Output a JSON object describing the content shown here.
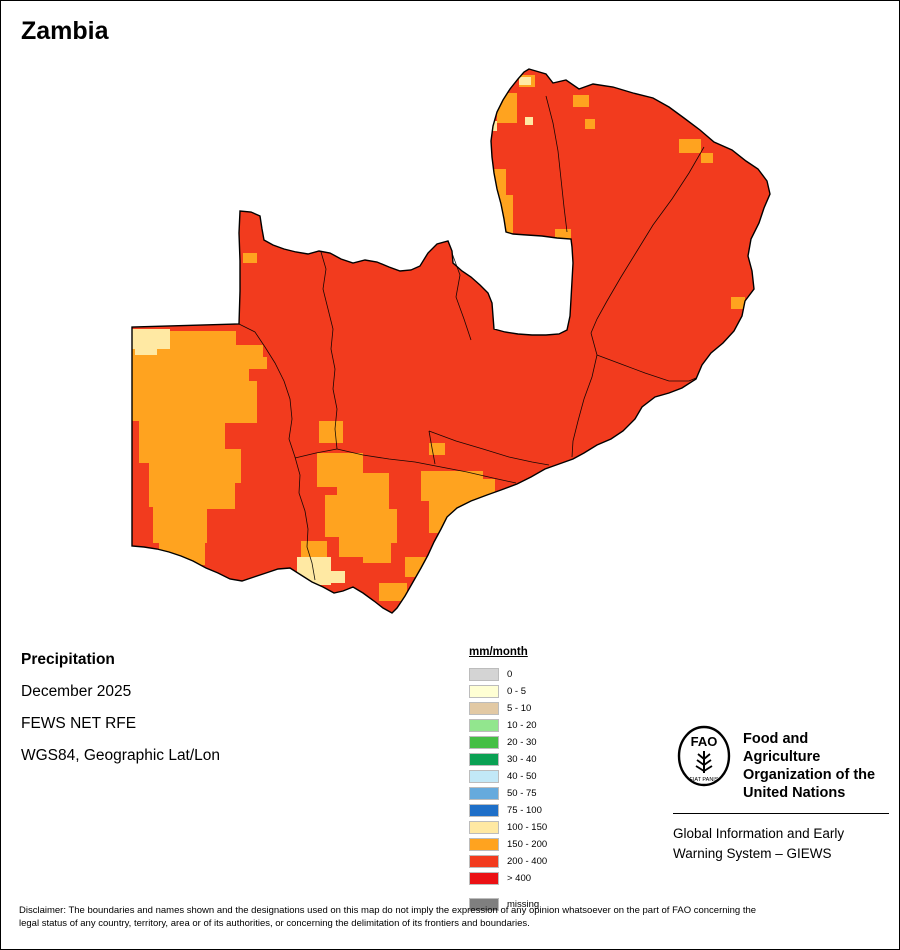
{
  "title": "Zambia",
  "meta": {
    "heading": "Precipitation",
    "period": "December 2025",
    "source": "FEWS NET RFE",
    "projection": "WGS84, Geographic Lat/Lon"
  },
  "legend": {
    "title": "mm/month",
    "entries": [
      {
        "label": "0",
        "color": "#d4d4d4"
      },
      {
        "label": "0 - 5",
        "color": "#ffffd4"
      },
      {
        "label": "5 - 10",
        "color": "#e2c9a4"
      },
      {
        "label": "10 - 20",
        "color": "#92e68e"
      },
      {
        "label": "20 - 30",
        "color": "#45bf45"
      },
      {
        "label": "30 - 40",
        "color": "#0aa153"
      },
      {
        "label": "40 - 50",
        "color": "#c2e8f7"
      },
      {
        "label": "50 - 75",
        "color": "#66aadd"
      },
      {
        "label": "75 - 100",
        "color": "#1e6fc8"
      },
      {
        "label": "100 - 150",
        "color": "#ffe9a3"
      },
      {
        "label": "150 - 200",
        "color": "#ffa31f"
      },
      {
        "label": "200 - 400",
        "color": "#f23b1e"
      },
      {
        "label": "> 400",
        "color": "#eb1014"
      },
      {
        "label": "missing",
        "color": "#7f7f7f"
      }
    ]
  },
  "map_colors": {
    "main": "#f23b1e",
    "patch_orange": "#ffa31f",
    "patch_yellow": "#ffe9a3",
    "boundary": "#000000"
  },
  "organization": {
    "logo_text": "FAO",
    "logo_motto": "FIAT PANIS",
    "name": "Food and Agriculture\nOrganization of the\nUnited Nations",
    "subtitle": "Global Information and Early\nWarning System – GIEWS"
  },
  "disclaimer": "Disclaimer: The boundaries and names shown and the designations used on this map do not imply the expression of any opinion whatsoever on the part of FAO concerning the legal status of any country, territory, area or of its authorities, or concerning the delimitation of its frontiers and boundaries."
}
